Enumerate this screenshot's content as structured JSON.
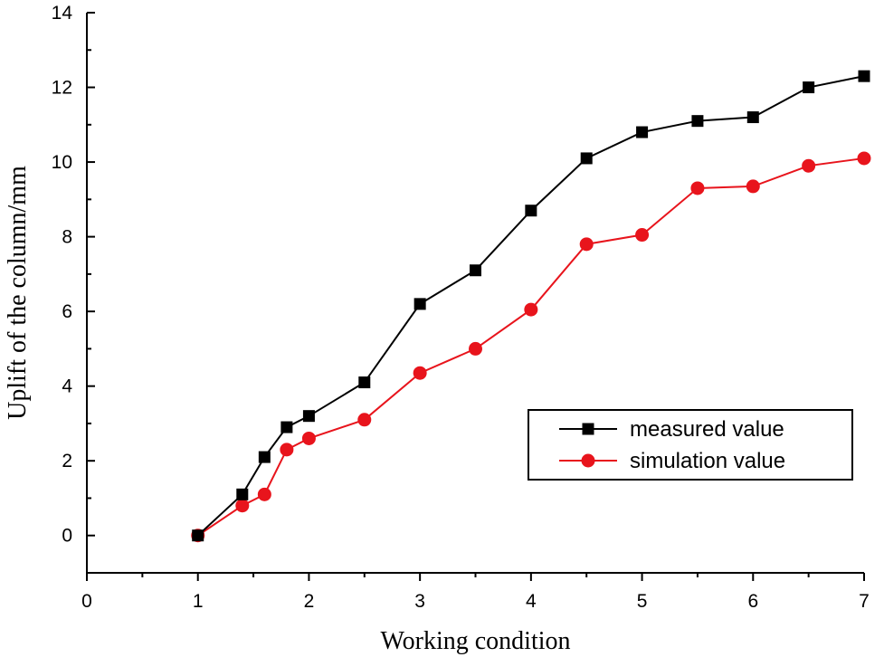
{
  "chart_data": {
    "type": "line",
    "title": "",
    "xlabel": "Working condition",
    "ylabel": "Uplift of the column/mm",
    "xlim": [
      0,
      7
    ],
    "ylim": [
      -1,
      14
    ],
    "xticks": [
      0,
      1,
      2,
      3,
      4,
      5,
      6,
      7
    ],
    "yticks": [
      0,
      2,
      4,
      6,
      8,
      10,
      12,
      14
    ],
    "grid": false,
    "legend_position": "bottom-right",
    "series": [
      {
        "name": "measured value",
        "color": "#000000",
        "marker": "square",
        "x": [
          1,
          1.4,
          1.6,
          1.8,
          2,
          2.5,
          3,
          3.5,
          4,
          4.5,
          5,
          5.5,
          6,
          6.5,
          7
        ],
        "y": [
          0,
          1.1,
          2.1,
          2.9,
          3.2,
          4.1,
          6.2,
          7.1,
          8.7,
          10.1,
          10.8,
          11.1,
          11.2,
          12.0,
          12.3
        ]
      },
      {
        "name": "simulation value",
        "color": "#e8141c",
        "marker": "circle",
        "x": [
          1,
          1.4,
          1.6,
          1.8,
          2,
          2.5,
          3,
          3.5,
          4,
          4.5,
          5,
          5.5,
          6,
          6.5,
          7
        ],
        "y": [
          0,
          0.8,
          1.1,
          2.3,
          2.6,
          3.1,
          4.35,
          5.0,
          6.05,
          7.8,
          8.05,
          9.3,
          9.35,
          9.9,
          10.1
        ]
      }
    ]
  }
}
